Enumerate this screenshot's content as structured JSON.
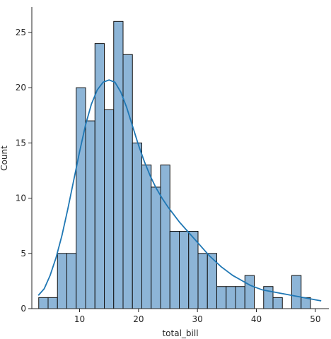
{
  "chart_data": {
    "type": "bar",
    "subtype": "histogram_with_kde",
    "title": "",
    "xlabel": "total_bill",
    "ylabel": "Count",
    "xlim": [
      1.9,
      52.3
    ],
    "ylim": [
      0,
      27.3
    ],
    "x_ticks": [
      10,
      20,
      30,
      40,
      50
    ],
    "y_ticks": [
      0,
      5,
      10,
      15,
      20,
      25
    ],
    "bin_start": 3.07,
    "bin_width": 1.59,
    "values": [
      1,
      1,
      5,
      5,
      20,
      17,
      24,
      18,
      26,
      23,
      15,
      13,
      11,
      13,
      7,
      7,
      7,
      5,
      5,
      2,
      2,
      2,
      3,
      0,
      2,
      1,
      0,
      3,
      1
    ],
    "kde_curve": {
      "x": [
        3,
        4,
        5,
        6,
        7,
        8,
        9,
        10,
        11,
        12,
        13,
        14,
        15,
        16,
        17,
        18,
        19,
        20,
        21,
        22,
        23,
        24,
        25,
        26,
        27,
        28,
        29,
        30,
        31,
        32,
        33,
        34,
        35,
        36,
        37,
        38,
        39,
        40,
        41,
        42,
        43,
        44,
        45,
        46,
        47,
        48,
        49,
        50,
        51
      ],
      "y": [
        1.2,
        1.8,
        3.0,
        4.6,
        6.6,
        9.0,
        11.6,
        14.2,
        16.6,
        18.5,
        19.8,
        20.5,
        20.7,
        20.5,
        19.6,
        18.2,
        16.5,
        14.8,
        13.3,
        12.0,
        10.9,
        10.0,
        9.2,
        8.5,
        7.8,
        7.2,
        6.6,
        6.0,
        5.4,
        4.8,
        4.3,
        3.8,
        3.4,
        3.0,
        2.7,
        2.4,
        2.1,
        1.9,
        1.7,
        1.6,
        1.5,
        1.4,
        1.3,
        1.2,
        1.1,
        1.0,
        0.9,
        0.8,
        0.7
      ]
    },
    "colors": {
      "bar_fill": "#8db5d7",
      "bar_edge": "#111111",
      "kde_line": "#1f77b4"
    },
    "grid": false,
    "legend": "none"
  }
}
